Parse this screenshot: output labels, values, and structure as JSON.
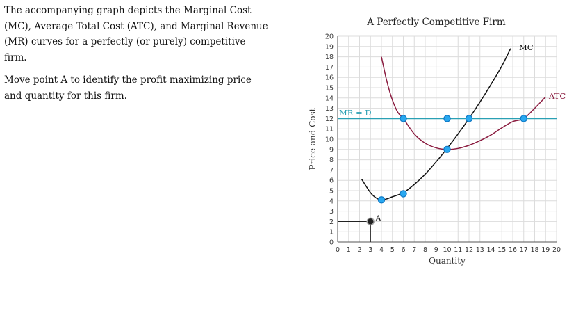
{
  "question": {
    "paragraph1": "The accompanying graph depicts the Marginal Cost (MC), Average Total Cost (ATC), and Marginal Revenue (MR) curves for a perfectly (or purely) competitive firm.",
    "paragraph2": "Move point A to identify the profit maximizing price and quantity for this firm."
  },
  "chart_data": {
    "type": "line",
    "title": "A Perfectly Competitive Firm",
    "xlabel": "Quantity",
    "ylabel": "Price and Cost",
    "xlim": [
      0,
      20
    ],
    "ylim": [
      0,
      20
    ],
    "x_ticks": [
      "0",
      "1",
      "2",
      "3",
      "4",
      "5",
      "6",
      "7",
      "8",
      "9",
      "10",
      "11",
      "12",
      "13",
      "14",
      "15",
      "16",
      "17",
      "18",
      "19",
      "20"
    ],
    "y_ticks": [
      "0",
      "1",
      "2",
      "3",
      "4",
      "5",
      "6",
      "7",
      "8",
      "9",
      "10",
      "11",
      "12",
      "13",
      "14",
      "15",
      "16",
      "17",
      "18",
      "19",
      "20"
    ],
    "grid": true,
    "series": [
      {
        "name": "MC",
        "color": "#111111",
        "points": [
          [
            2.2,
            6.1
          ],
          [
            3,
            4.8
          ],
          [
            3.5,
            4.3
          ],
          [
            4,
            4.1
          ],
          [
            4.5,
            4.2
          ],
          [
            5,
            4.4
          ],
          [
            6,
            4.8
          ],
          [
            7,
            5.6
          ],
          [
            8,
            6.6
          ],
          [
            9,
            7.8
          ],
          [
            10,
            9.1
          ],
          [
            11,
            10.5
          ],
          [
            12,
            12
          ],
          [
            13,
            13.6
          ],
          [
            14,
            15.3
          ],
          [
            15,
            17.1
          ],
          [
            15.8,
            18.8
          ]
        ],
        "markers": [
          [
            4,
            4.1
          ],
          [
            6,
            4.7
          ],
          [
            10,
            9
          ],
          [
            12,
            12
          ]
        ]
      },
      {
        "name": "ATC",
        "color": "#8b1c40",
        "points": [
          [
            4,
            18
          ],
          [
            4.5,
            15.6
          ],
          [
            5,
            13.8
          ],
          [
            5.5,
            12.6
          ],
          [
            6,
            12
          ],
          [
            7,
            10.5
          ],
          [
            8,
            9.6
          ],
          [
            9,
            9.15
          ],
          [
            10,
            9
          ],
          [
            11,
            9.1
          ],
          [
            12,
            9.4
          ],
          [
            13,
            9.85
          ],
          [
            14,
            10.4
          ],
          [
            15,
            11.1
          ],
          [
            16,
            11.7
          ],
          [
            17,
            12
          ],
          [
            18,
            13
          ],
          [
            19,
            14.1
          ]
        ],
        "markers": [
          [
            6,
            12
          ],
          [
            17,
            12
          ]
        ]
      },
      {
        "name": "MR = D",
        "color": "#2aa0b4",
        "points": [
          [
            0,
            12
          ],
          [
            20,
            12
          ]
        ],
        "markers": [
          [
            10,
            12
          ]
        ]
      }
    ],
    "point_A": {
      "label": "A",
      "x": 3,
      "y": 2
    }
  }
}
